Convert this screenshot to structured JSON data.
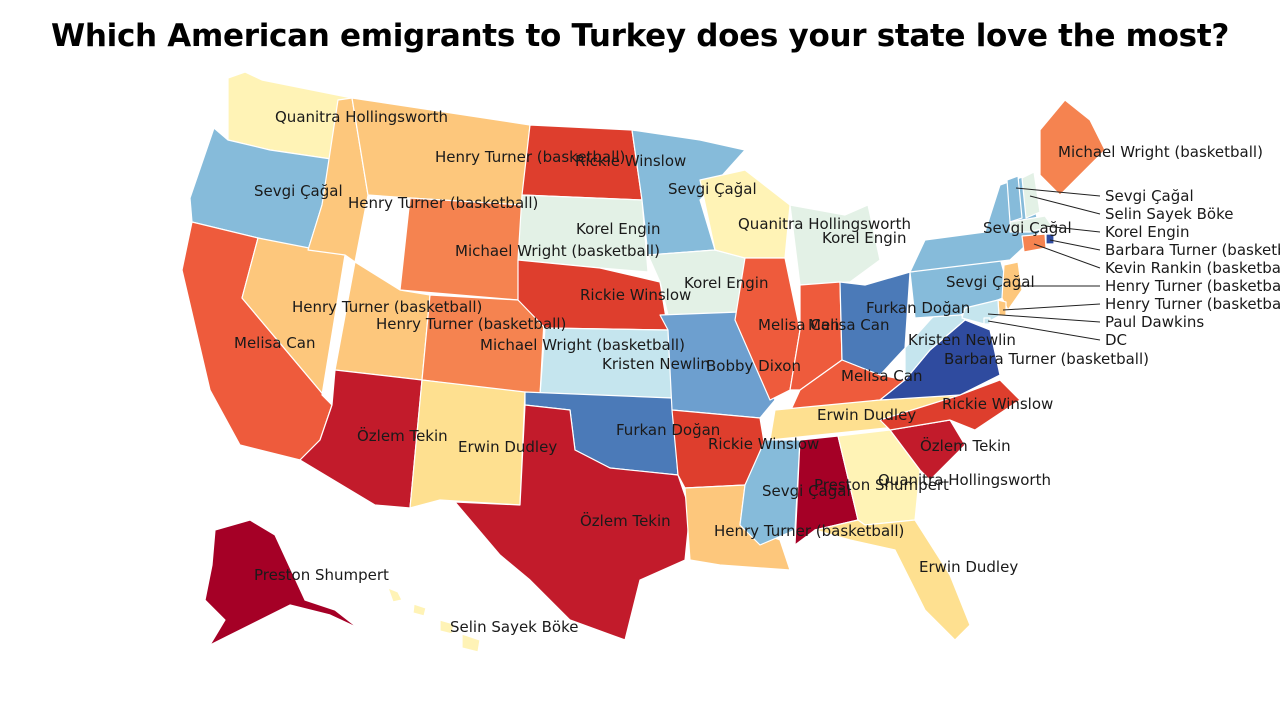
{
  "title": "Which American emigrants to Turkey does your state love the most?",
  "palette": {
    "darkred": "#a50026",
    "red": "#c21b2b",
    "redorange": "#de3e2d",
    "orange": "#ee5b3c",
    "lightorange": "#f58350",
    "peach": "#fdc77c",
    "lightpeach": "#fee090",
    "cream": "#fff3b6",
    "palegreen": "#e3f1e6",
    "lightblue": "#c5e5ee",
    "blue": "#86bbda",
    "midblue": "#6d9fcf",
    "steelblue": "#4b7ab8",
    "darkblue": "#2f4b9f"
  },
  "states": [
    {
      "code": "WA",
      "label": "Quanitra Hollingsworth",
      "color": "cream"
    },
    {
      "code": "OR",
      "label": "Sevgi Çağal",
      "color": "blue"
    },
    {
      "code": "CA",
      "label": "Melisa Can",
      "color": "orange"
    },
    {
      "code": "NV",
      "label": "Henry Turner (basketball)",
      "color": "peach"
    },
    {
      "code": "ID",
      "label": "Henry Turner (basketball)",
      "color": "peach"
    },
    {
      "code": "MT",
      "label": "Henry Turner (basketball)",
      "color": "peach"
    },
    {
      "code": "WY",
      "label": "Michael Wright (basketball)",
      "color": "lightorange"
    },
    {
      "code": "UT",
      "label": "Henry Turner (basketball)",
      "color": "peach"
    },
    {
      "code": "CO",
      "label": "Michael Wright (basketball)",
      "color": "lightorange"
    },
    {
      "code": "AZ",
      "label": "Özlem Tekin",
      "color": "red"
    },
    {
      "code": "NM",
      "label": "Erwin Dudley",
      "color": "lightpeach"
    },
    {
      "code": "ND",
      "label": "Rickie Winslow",
      "color": "redorange"
    },
    {
      "code": "SD",
      "label": "Korel Engin",
      "color": "palegreen"
    },
    {
      "code": "NE",
      "label": "Rickie Winslow",
      "color": "redorange"
    },
    {
      "code": "KS",
      "label": "Kristen Newlin",
      "color": "lightblue"
    },
    {
      "code": "OK",
      "label": "Furkan Doğan",
      "color": "steelblue"
    },
    {
      "code": "TX",
      "label": "Özlem Tekin",
      "color": "red"
    },
    {
      "code": "MN",
      "label": "Sevgi Çağal",
      "color": "blue"
    },
    {
      "code": "IA",
      "label": "Korel Engin",
      "color": "palegreen"
    },
    {
      "code": "MO",
      "label": "Bobby Dixon",
      "color": "midblue"
    },
    {
      "code": "AR",
      "label": "Rickie Winslow",
      "color": "redorange"
    },
    {
      "code": "LA",
      "label": "Henry Turner (basketball)",
      "color": "peach"
    },
    {
      "code": "WI",
      "label": "Quanitra Hollingsworth",
      "color": "cream"
    },
    {
      "code": "IL",
      "label": "Melisa Can",
      "color": "orange"
    },
    {
      "code": "MI",
      "label": "Korel Engin",
      "color": "palegreen"
    },
    {
      "code": "IN",
      "label": "Melisa Can",
      "color": "orange"
    },
    {
      "code": "OH",
      "label": "Furkan Doğan",
      "color": "steelblue"
    },
    {
      "code": "KY",
      "label": "Melisa Can",
      "color": "orange"
    },
    {
      "code": "TN",
      "label": "Erwin Dudley",
      "color": "lightpeach"
    },
    {
      "code": "MS",
      "label": "Sevgi Çağal",
      "color": "blue"
    },
    {
      "code": "AL",
      "label": "Preston Shumpert",
      "color": "darkred"
    },
    {
      "code": "GA",
      "label": "Quanitra Hollingsworth",
      "color": "cream"
    },
    {
      "code": "FL",
      "label": "Erwin Dudley",
      "color": "lightpeach"
    },
    {
      "code": "SC",
      "label": "Özlem Tekin",
      "color": "red"
    },
    {
      "code": "NC",
      "label": "Rickie Winslow",
      "color": "redorange"
    },
    {
      "code": "VA",
      "label": "Barbara Turner (basketball)",
      "color": "darkblue"
    },
    {
      "code": "WV",
      "label": "Kristen Newlin",
      "color": "lightblue"
    },
    {
      "code": "PA",
      "label": "Sevgi Çağal",
      "color": "blue"
    },
    {
      "code": "NY",
      "label": "Sevgi Çağal",
      "color": "blue"
    },
    {
      "code": "ME",
      "label": "Michael Wright (basketball)",
      "color": "lightorange"
    },
    {
      "code": "AK",
      "label": "Preston Shumpert",
      "color": "darkred"
    },
    {
      "code": "HI",
      "label": "Selin Sayek Böke",
      "color": "cream"
    },
    {
      "code": "VT",
      "label": "Sevgi Çağal",
      "color": "blue"
    },
    {
      "code": "NH",
      "label": "Selin Sayek Böke",
      "color": "palegreen"
    },
    {
      "code": "MA",
      "label": "Korel Engin",
      "color": "palegreen"
    },
    {
      "code": "RI",
      "label": "Barbara Turner (basketball)",
      "color": "darkblue"
    },
    {
      "code": "CT",
      "label": "Kevin Rankin (basketball)",
      "color": "lightorange"
    },
    {
      "code": "NJ",
      "label": "Henry Turner (basketball)",
      "color": "peach"
    },
    {
      "code": "DE",
      "label": "Henry Turner (basketball)",
      "color": "peach"
    },
    {
      "code": "MD",
      "label": "Paul Dawkins",
      "color": "lightblue"
    },
    {
      "code": "DC",
      "label": "DC",
      "color": "lightblue"
    }
  ]
}
